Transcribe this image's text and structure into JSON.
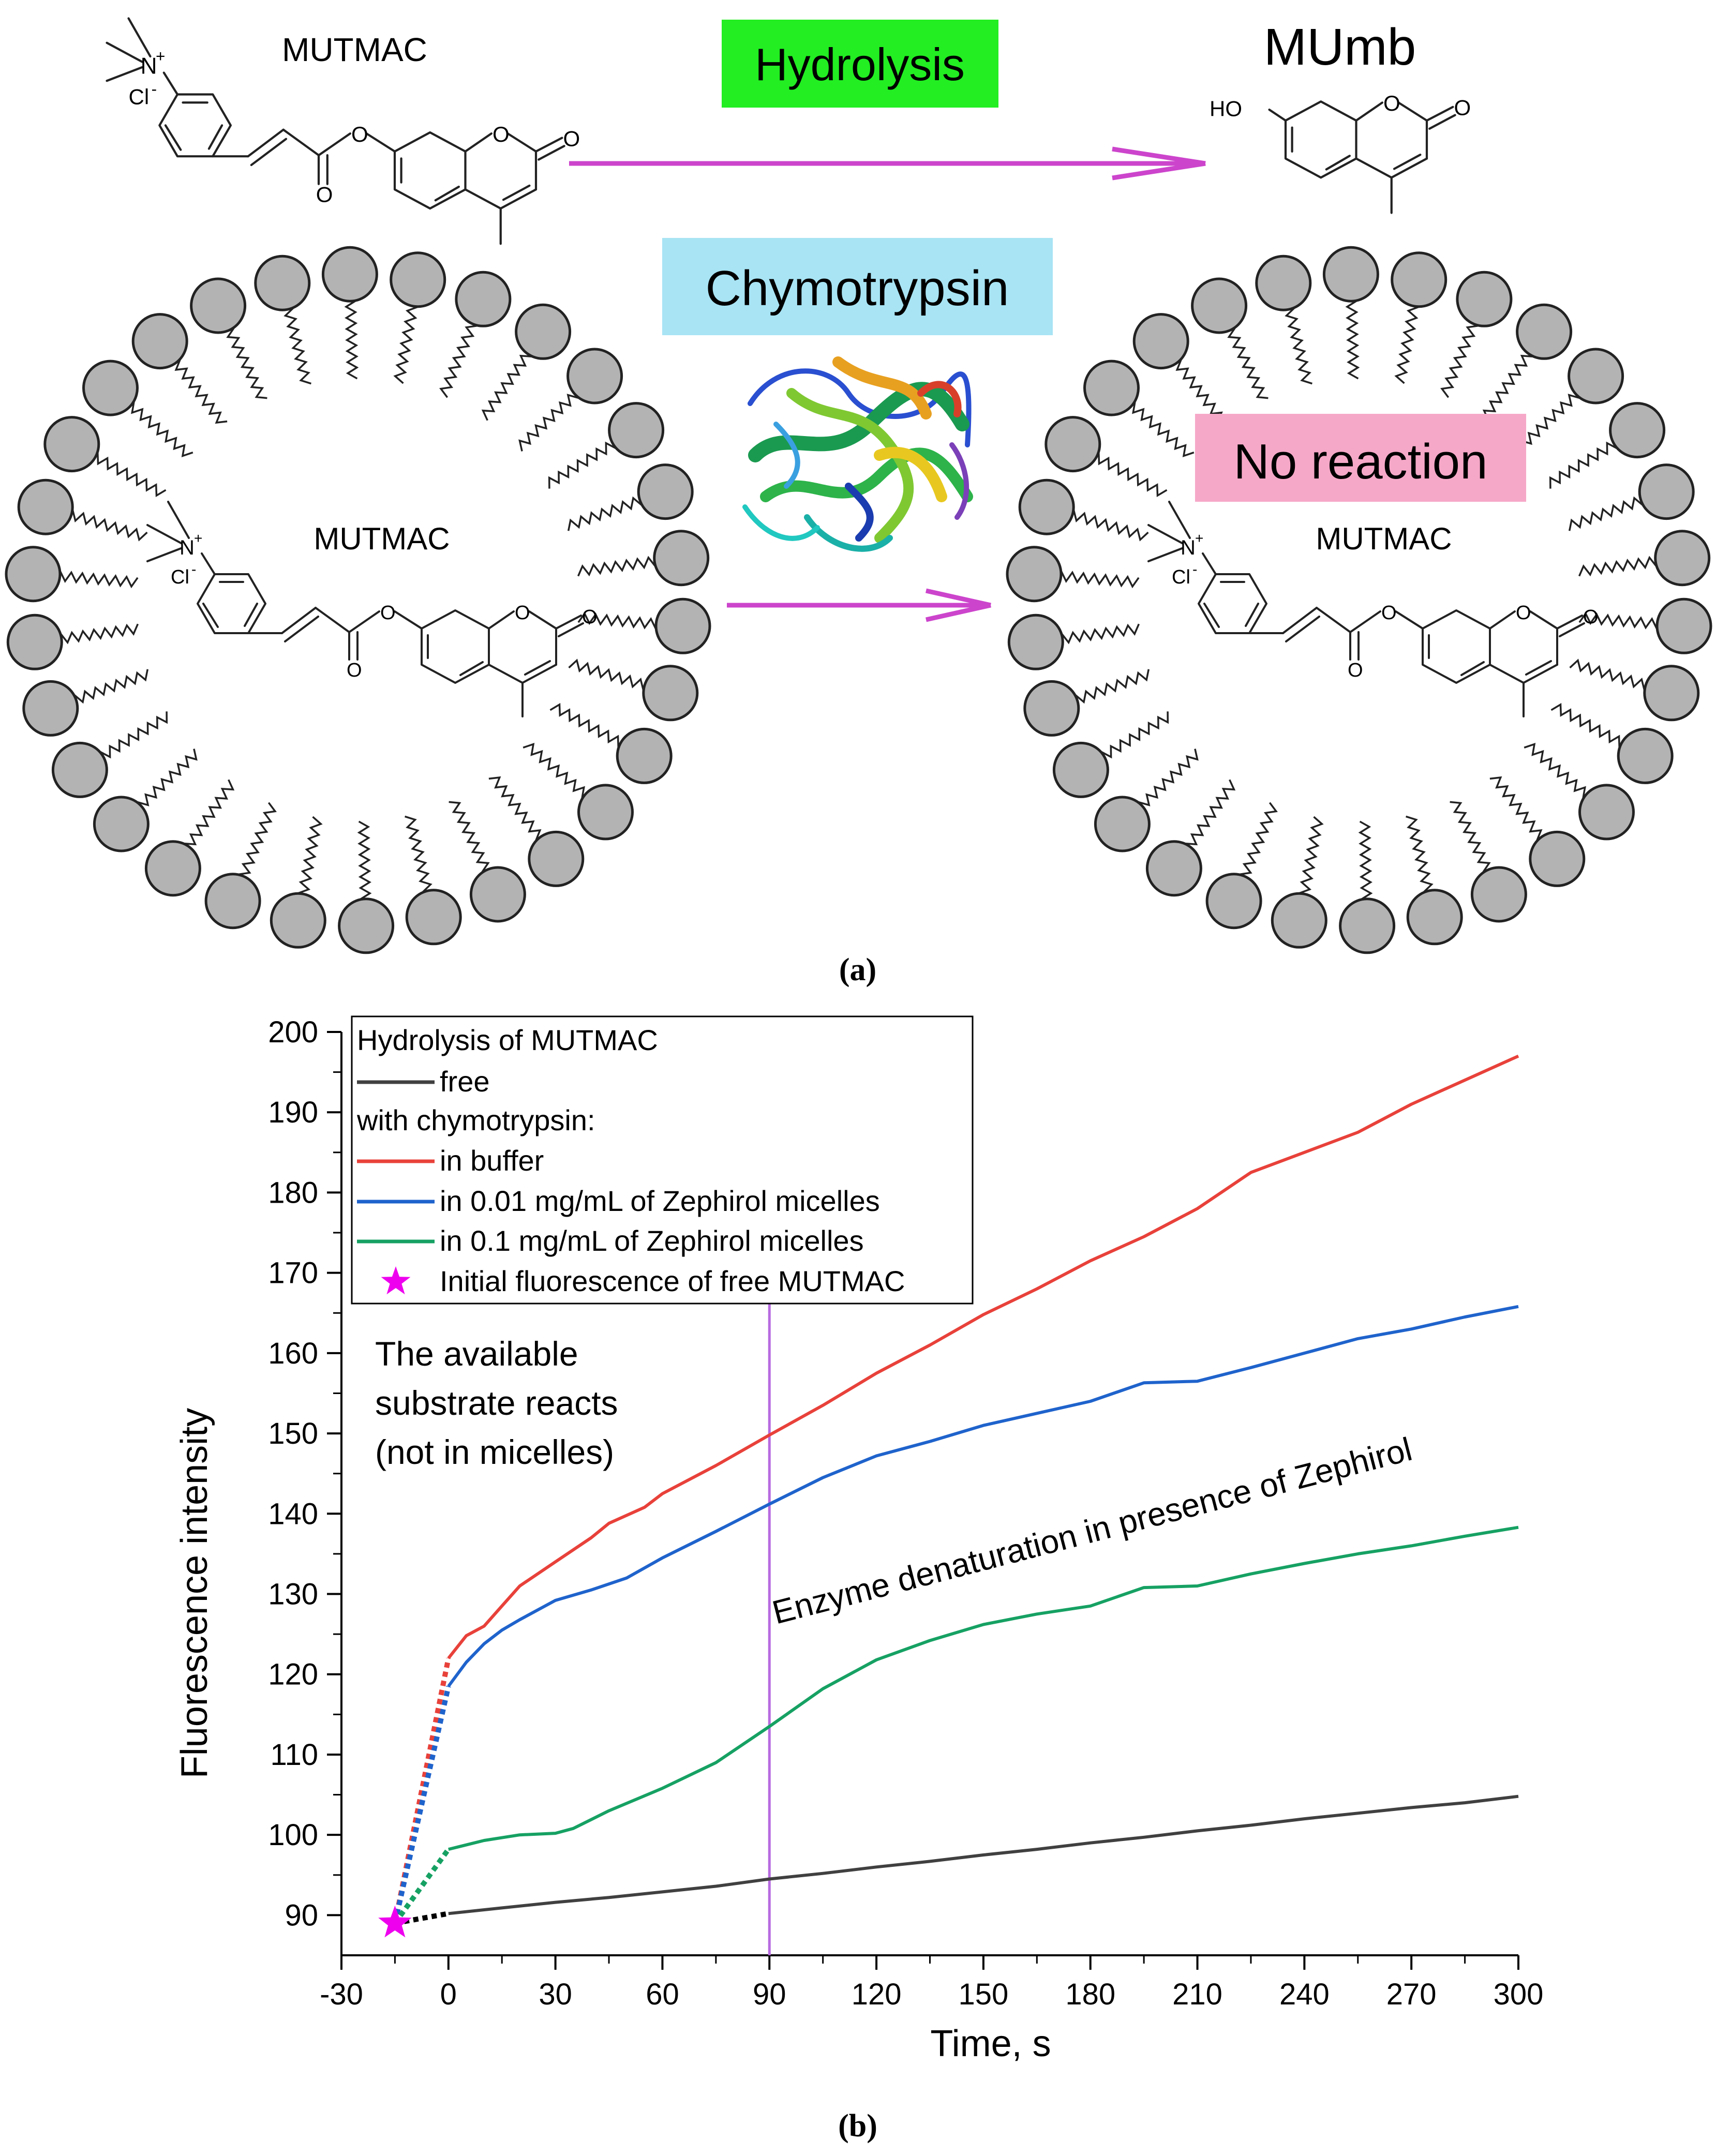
{
  "panel_a": {
    "free_substrate": "MUTMAC",
    "product": "MUmb",
    "hydrolysis_box": "Hydrolysis",
    "enzyme_box": "Chymotrypsin",
    "no_reaction_box": "No reaction",
    "micelle_substrate_left": "MUTMAC",
    "micelle_substrate_right": "MUTMAC",
    "atoms": {
      "n_plus": "N",
      "plus": "+",
      "chloride": "Cl",
      "minus": "-",
      "oxygen": "O",
      "hydroxyl": "HO"
    },
    "colors": {
      "hydrolysis_bg": "#22ee22",
      "enzyme_bg": "#a8e4f4",
      "no_reaction_bg": "#f6a8c8",
      "arrow": "#cc44cc",
      "micelle_head": "#b3b3b3"
    },
    "caption": "(a)"
  },
  "panel_b": {
    "caption": "(b)",
    "annotation_available": [
      "The available",
      "substrate reacts",
      "(not in micelles)"
    ],
    "annotation_denaturation": "Enzyme denaturation in presence of Zephirol",
    "legend": {
      "title": "Hydrolysis of MUTMAC",
      "free": "free",
      "subheader": "with chymotrypsin:",
      "buffer": "in buffer",
      "z001": "in 0.01 mg/mL of Zephirol micelles",
      "z01": "in 0.1 mg/mL of Zephirol micelles",
      "star": "Initial fluorescence of free MUTMAC"
    }
  },
  "chart_data": {
    "type": "line",
    "xlabel": "Time, s",
    "ylabel": "Fluorescence intensity",
    "xlim": [
      -30,
      300
    ],
    "ylim": [
      85,
      200
    ],
    "xticks": [
      -30,
      0,
      30,
      60,
      90,
      120,
      150,
      180,
      210,
      240,
      270,
      300
    ],
    "yticks": [
      90,
      100,
      110,
      120,
      130,
      140,
      150,
      160,
      170,
      180,
      190,
      200
    ],
    "grid": false,
    "legend_position": "top-left",
    "vline": {
      "x": 90,
      "color": "#b86be0"
    },
    "initial_point": {
      "name": "Initial fluorescence of free MUTMAC",
      "x": -15,
      "y": 89,
      "color": "#ee00ee",
      "marker": "star"
    },
    "series": [
      {
        "name": "free",
        "color": "#404040",
        "x": [
          0,
          15,
          30,
          45,
          60,
          75,
          90,
          105,
          120,
          135,
          150,
          165,
          180,
          195,
          210,
          225,
          240,
          255,
          270,
          285,
          300
        ],
        "y": [
          90.2,
          90.9,
          91.6,
          92.2,
          92.9,
          93.6,
          94.5,
          95.2,
          96.0,
          96.7,
          97.5,
          98.2,
          99.0,
          99.7,
          100.5,
          101.2,
          102.0,
          102.7,
          103.4,
          104.0,
          104.8
        ]
      },
      {
        "name": "in buffer",
        "color": "#e8413a",
        "x": [
          0,
          5,
          10,
          15,
          20,
          30,
          40,
          45,
          55,
          60,
          75,
          90,
          105,
          120,
          135,
          150,
          165,
          180,
          195,
          210,
          225,
          240,
          255,
          270,
          285,
          300
        ],
        "y": [
          122.0,
          124.8,
          126.0,
          128.5,
          131.0,
          134.0,
          137.0,
          138.8,
          140.8,
          142.5,
          146.0,
          149.8,
          153.5,
          157.5,
          161.0,
          164.8,
          168.0,
          171.5,
          174.5,
          178.0,
          182.5,
          185.0,
          187.5,
          191.0,
          194.0,
          197.0
        ]
      },
      {
        "name": "in 0.01 mg/mL of Zephirol micelles",
        "color": "#1f63cc",
        "x": [
          0,
          5,
          10,
          15,
          20,
          30,
          40,
          50,
          60,
          75,
          90,
          105,
          120,
          135,
          150,
          165,
          180,
          195,
          210,
          225,
          240,
          255,
          270,
          285,
          300
        ],
        "y": [
          118.5,
          121.5,
          123.8,
          125.5,
          126.8,
          129.2,
          130.5,
          132.0,
          134.5,
          137.8,
          141.2,
          144.5,
          147.2,
          149.0,
          151.0,
          152.5,
          154.0,
          156.3,
          156.5,
          158.2,
          160.0,
          161.8,
          163.0,
          164.5,
          165.8
        ]
      },
      {
        "name": "in 0.1 mg/mL of Zephirol micelles",
        "color": "#16a163",
        "x": [
          0,
          10,
          20,
          30,
          35,
          45,
          60,
          75,
          90,
          105,
          120,
          135,
          150,
          165,
          180,
          195,
          210,
          225,
          240,
          255,
          270,
          285,
          300
        ],
        "y": [
          98.2,
          99.3,
          100.0,
          100.2,
          100.8,
          103.0,
          105.8,
          109.0,
          113.5,
          118.2,
          121.8,
          124.2,
          126.2,
          127.5,
          128.5,
          130.8,
          131.0,
          132.5,
          133.8,
          135.0,
          136.0,
          137.2,
          138.3
        ]
      }
    ],
    "extrapolations": [
      {
        "series": "free",
        "color": "#000000",
        "from": [
          -15,
          89
        ],
        "to": [
          0,
          90.2
        ]
      },
      {
        "series": "in buffer",
        "color": "#e8413a",
        "from": [
          -15,
          89
        ],
        "to": [
          0,
          122.0
        ]
      },
      {
        "series": "in 0.01 mg/mL of Zephirol micelles",
        "color": "#1f63cc",
        "from": [
          -15,
          89
        ],
        "to": [
          0,
          118.5
        ]
      },
      {
        "series": "in 0.1 mg/mL of Zephirol micelles",
        "color": "#16a163",
        "from": [
          -15,
          89
        ],
        "to": [
          0,
          98.2
        ]
      }
    ]
  }
}
